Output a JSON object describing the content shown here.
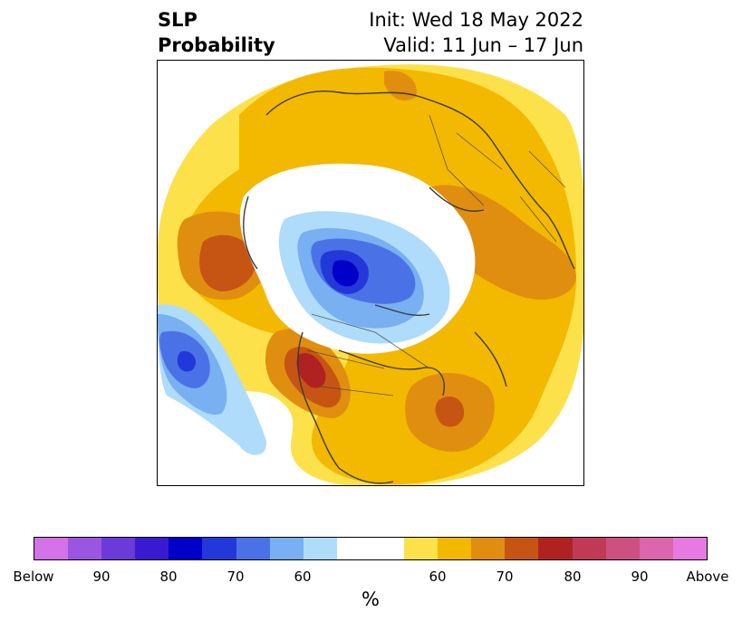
{
  "header": {
    "title_line1": "SLP",
    "title_line2": "Probability",
    "init": "Init: Wed 18 May 2022",
    "valid": "Valid: 11 Jun – 17 Jun"
  },
  "colorbar": {
    "colors": [
      "#d472e8",
      "#9a56e0",
      "#6a3bd8",
      "#3a1ad0",
      "#0000c8",
      "#2338d8",
      "#4a72e6",
      "#78b0f2",
      "#aedcfa",
      "#ffffff",
      "#ffffff",
      "#fde14a",
      "#f3b800",
      "#e08e10",
      "#c65514",
      "#b02222",
      "#c03a55",
      "#cc5180",
      "#dc66ac",
      "#e67ae0"
    ],
    "tick_labels": [
      "Below",
      "90",
      "80",
      "70",
      "60",
      "60",
      "70",
      "80",
      "90",
      "Above"
    ],
    "units": "%"
  },
  "map": {
    "variable": "SLP",
    "projection": "polar stereographic (north)",
    "colors": {
      "ocean_land_lines": "#3a3a3a",
      "above_60": "#fde14a",
      "above_65": "#f3b800",
      "above_70": "#e08e10",
      "above_75": "#c65514",
      "above_80": "#b02222",
      "below_60": "#aedcfa",
      "below_65": "#78b0f2",
      "below_70": "#4a72e6",
      "below_75": "#2338d8",
      "below_80": "#0000c8"
    }
  }
}
